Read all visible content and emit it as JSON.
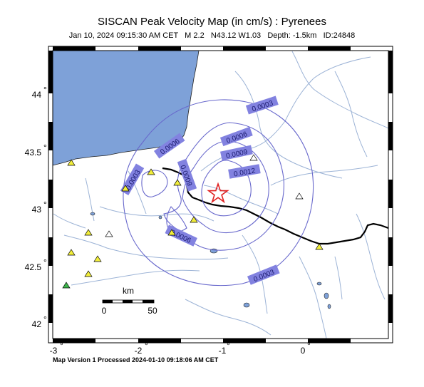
{
  "header": {
    "title": "SISCAN Peak Velocity Map (in cm/s) : Pyrenees",
    "date": "Jan 10, 2024 09:15:30 AM CET",
    "magnitude": "M 2.2",
    "location": "N43.12 W1.03",
    "depth": "Depth: -1.5km",
    "id": "ID:24848"
  },
  "axes": {
    "y_ticks": [
      "44",
      "43.5",
      "43",
      "42.5",
      "42"
    ],
    "x_ticks": [
      "-3",
      "-2",
      "-1",
      "0"
    ],
    "degree_symbol": "°"
  },
  "contours": {
    "labels": [
      "0.0003",
      "0.0006",
      "0.0009",
      "0.0012",
      "0.0006",
      "0.0009",
      "0.0003",
      "0.0006",
      "0.0003"
    ]
  },
  "scale_bar": {
    "unit": "km",
    "start": "0",
    "end": "50"
  },
  "footer": {
    "text": "Map Version 1 Processed 2024-01-10 09:18:06 AM CET"
  },
  "colors": {
    "sea": "#7ea1d8",
    "contour": "#6868cc",
    "label_bg": "#8282e0",
    "border": "#000000",
    "river": "#9cb3d6",
    "epicenter": "#e02020",
    "station_yellow": "#f2ee3a",
    "station_white": "#ffffff",
    "station_green": "#3cb44b"
  }
}
